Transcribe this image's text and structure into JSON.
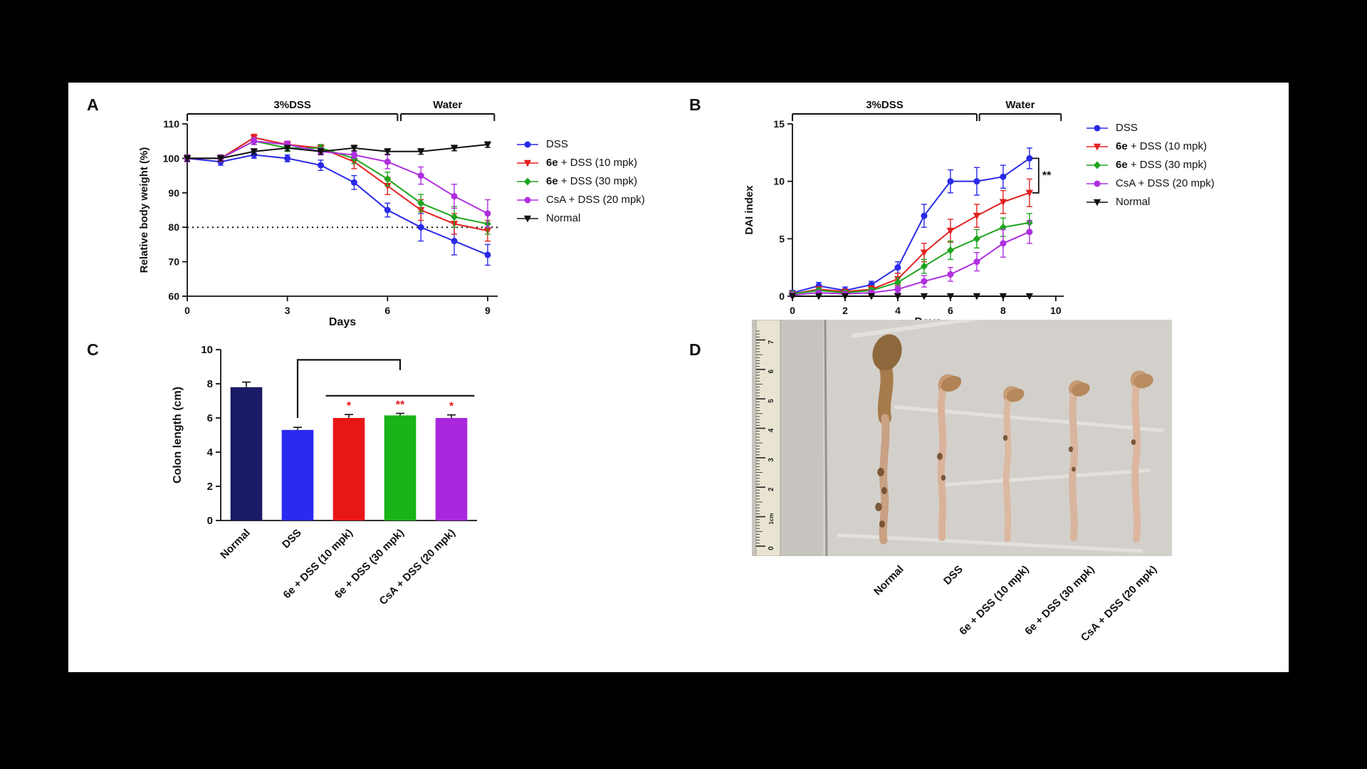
{
  "panels": {
    "a": "A",
    "b": "B",
    "c": "C",
    "d": "D"
  },
  "chart_data": [
    {
      "id": "panel_a",
      "type": "line",
      "title": "",
      "xlabel": "Days",
      "ylabel": "Relative body weight (%)",
      "xlim": [
        0,
        9.3
      ],
      "ylim": [
        60,
        110
      ],
      "xticks": [
        0,
        3,
        6,
        9
      ],
      "yticks": [
        60,
        70,
        80,
        90,
        100,
        110
      ],
      "dotted_line_y": 80,
      "phases": [
        {
          "label": "3%DSS",
          "x0": 0,
          "x1": 6.3
        },
        {
          "label": "Water",
          "x0": 6.4,
          "x1": 9.2
        }
      ],
      "x": [
        0,
        1,
        2,
        3,
        4,
        5,
        6,
        7,
        8,
        9
      ],
      "series": [
        {
          "name": "DSS",
          "color": "#2a2ae8",
          "marker": "circle",
          "values": [
            100,
            99,
            101,
            100,
            98,
            93,
            85,
            80,
            76,
            72
          ],
          "errors": [
            1,
            1,
            1,
            1,
            1.5,
            2,
            2,
            4,
            4,
            3
          ]
        },
        {
          "name": "6e + DSS (10 mpk)",
          "bold_prefix": "6e",
          "color": "#e32020",
          "marker": "triangle-down",
          "values": [
            100,
            100,
            106,
            104,
            103,
            99,
            92,
            85,
            81,
            79
          ],
          "errors": [
            1,
            1,
            1,
            1,
            1,
            2,
            2.5,
            3,
            3,
            3
          ]
        },
        {
          "name": "6e + DSS (30 mpk)",
          "bold_prefix": "6e",
          "color": "#1ea51e",
          "marker": "diamond",
          "values": [
            100,
            100,
            105,
            103,
            103,
            100,
            94,
            87,
            83,
            81
          ],
          "errors": [
            1,
            1,
            1,
            1,
            1,
            1.5,
            2,
            2.5,
            3,
            3
          ]
        },
        {
          "name": "CsA + DSS (20 mpk)",
          "color": "#b02fe0",
          "marker": "circle",
          "values": [
            100,
            100,
            105,
            104,
            102,
            101,
            99,
            95,
            89,
            84
          ],
          "errors": [
            1,
            1,
            1,
            1,
            1,
            1,
            2,
            2.5,
            3.5,
            4
          ]
        },
        {
          "name": "Normal",
          "color": "#111111",
          "marker": "triangle-down",
          "values": [
            100,
            100,
            102,
            103,
            102,
            103,
            102,
            102,
            103,
            104
          ],
          "errors": [
            0.8,
            0.8,
            0.8,
            0.8,
            0.8,
            0.8,
            0.8,
            0.8,
            0.8,
            0.8
          ]
        }
      ]
    },
    {
      "id": "panel_b",
      "type": "line",
      "title": "",
      "xlabel": "Days",
      "ylabel": "DAI index",
      "xlim": [
        0,
        10.3
      ],
      "ylim": [
        0,
        15
      ],
      "xticks": [
        0,
        2,
        4,
        6,
        8,
        10
      ],
      "yticks": [
        0,
        5,
        10,
        15
      ],
      "phases": [
        {
          "label": "3%DSS",
          "x0": 0,
          "x1": 7
        },
        {
          "label": "Water",
          "x0": 7.1,
          "x1": 10.2
        }
      ],
      "sig": {
        "label": "**",
        "x": 9.35,
        "y0": 9,
        "y1": 12
      },
      "x": [
        0,
        1,
        2,
        3,
        4,
        5,
        6,
        7,
        8,
        9
      ],
      "series": [
        {
          "name": "DSS",
          "color": "#2a2ae8",
          "marker": "circle",
          "values": [
            0.3,
            0.9,
            0.5,
            1,
            2.5,
            7,
            10,
            10,
            10.4,
            12
          ],
          "errors": [
            0.2,
            0.3,
            0.3,
            0.3,
            0.5,
            1,
            1,
            1.2,
            1,
            0.9
          ]
        },
        {
          "name": "6e + DSS (10 mpk)",
          "bold_prefix": "6e",
          "color": "#e32020",
          "marker": "triangle-down",
          "values": [
            0.2,
            0.6,
            0.4,
            0.6,
            1.5,
            3.8,
            5.7,
            7,
            8.2,
            9
          ],
          "errors": [
            0.2,
            0.2,
            0.2,
            0.3,
            0.5,
            0.8,
            1,
            1,
            1,
            1.2
          ]
        },
        {
          "name": "6e + DSS (30 mpk)",
          "bold_prefix": "6e",
          "color": "#1ea51e",
          "marker": "diamond",
          "values": [
            0.2,
            0.5,
            0.3,
            0.5,
            1.2,
            2.6,
            4,
            5,
            6,
            6.4
          ],
          "errors": [
            0.1,
            0.2,
            0.2,
            0.2,
            0.4,
            0.6,
            0.8,
            0.8,
            0.8,
            0.8
          ]
        },
        {
          "name": "CsA + DSS (20 mpk)",
          "color": "#b02fe0",
          "marker": "circle",
          "values": [
            0.1,
            0.3,
            0.2,
            0.3,
            0.6,
            1.3,
            1.9,
            3,
            4.6,
            5.6
          ],
          "errors": [
            0.1,
            0.1,
            0.1,
            0.2,
            0.3,
            0.5,
            0.6,
            0.8,
            1.2,
            1
          ]
        },
        {
          "name": "Normal",
          "color": "#111111",
          "marker": "triangle-down",
          "values": [
            0,
            0,
            0,
            0,
            0,
            0,
            0,
            0,
            0,
            0
          ],
          "errors": [
            0,
            0,
            0,
            0,
            0,
            0,
            0,
            0,
            0,
            0
          ]
        }
      ]
    },
    {
      "id": "panel_c",
      "type": "bar",
      "title": "",
      "xlabel": "",
      "ylabel": "Colon length (cm)",
      "ylim": [
        0,
        10
      ],
      "yticks": [
        0,
        2,
        4,
        6,
        8,
        10
      ],
      "categories": [
        "Normal",
        "DSS",
        "6e + DSS (10 mpk)",
        "6e + DSS (30 mpk)",
        "CsA + DSS (20 mpk)"
      ],
      "values": [
        7.8,
        5.3,
        6.0,
        6.15,
        6.0
      ],
      "errors": [
        0.3,
        0.15,
        0.2,
        0.12,
        0.18
      ],
      "colors": [
        "#1a1a66",
        "#2a2af0",
        "#e81717",
        "#18b418",
        "#a928dd"
      ],
      "sig": [
        null,
        null,
        "*",
        "**",
        "*"
      ],
      "sig_color": "#e81717",
      "overlays": [
        {
          "points": [
            [
              1,
              6.0
            ],
            [
              1,
              9.4
            ],
            [
              3,
              9.4
            ],
            [
              3,
              8.8
            ]
          ]
        },
        {
          "points": [
            [
              1.55,
              7.3
            ],
            [
              4.45,
              7.3
            ]
          ]
        }
      ]
    }
  ],
  "panel_d": {
    "ruler_marks": [
      "7",
      "6",
      "5",
      "4",
      "3",
      "2",
      "1cm",
      "0"
    ],
    "specimens": [
      "Normal",
      "DSS",
      "6e + DSS (10 mpk)",
      "6e + DSS (30 mpk)",
      "CsA + DSS (20 mpk)"
    ]
  }
}
